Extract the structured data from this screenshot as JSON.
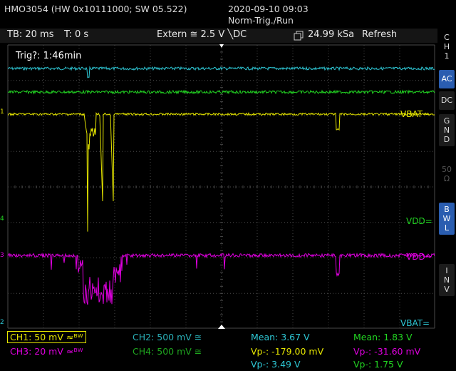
{
  "header": {
    "model": "HMO3054 (HW 0x10111000; SW 05.522)",
    "datetime": "2020-09-10 09:03",
    "mode": "Norm-Trig./Run"
  },
  "infobar": {
    "timebase": "TB: 20 ms",
    "time_offset": "T: 0 s",
    "trigger": "Extern ≅ 2.5 V ╲DC",
    "sample_rate": "24.99 kSa",
    "acq_mode": "Refresh"
  },
  "screen": {
    "trig_label": "Trig?: 1:46min",
    "labels": {
      "vbat_yellow": "VBAT~",
      "vdd_green": "VDD=",
      "vdd_magenta": "VDD~",
      "vbat_cyan": "VBAT="
    },
    "markers": {
      "ch1": "1",
      "ch3": "3",
      "ch4": "4",
      "ch2": "2"
    }
  },
  "sidebar": {
    "channel": [
      "C",
      "H",
      "1"
    ],
    "buttons": [
      {
        "lines": [
          "AC"
        ],
        "active": true
      },
      {
        "lines": [
          "DC"
        ],
        "active": false
      },
      {
        "lines": [
          "G",
          "N",
          "D"
        ],
        "active": false
      },
      {
        "lines": [
          "50",
          "Ω"
        ],
        "active": false,
        "disabled": true
      },
      {
        "lines": [
          "B",
          "W",
          "L"
        ],
        "active": true
      },
      {
        "lines": [
          "I",
          "N",
          "V"
        ],
        "active": false
      }
    ]
  },
  "channels": {
    "ch1": "CH1: 50 mV ≈ᴮᵂ",
    "ch2": "CH2: 500 mV ≅",
    "ch3": "CH3: 20 mV ≈ᴮᵂ",
    "ch4": "CH4: 500 mV ≅"
  },
  "measurements": {
    "cyan": {
      "mean": "Mean: 3.67 V",
      "vpp": "Vp-: -179.00 mV",
      "vp": "Vp-: 3.49 V"
    },
    "green": {
      "mean": "Mean: 1.83 V",
      "vpp": "Vp-: -31.60 mV",
      "vp": "Vp-: 1.75 V"
    }
  },
  "colors": {
    "ch1": "#e6e600",
    "ch2": "#2ec8d6",
    "ch3": "#e000e0",
    "ch4": "#22d422",
    "grid": "#4a4a4a",
    "accent": "#2a5db0"
  }
}
